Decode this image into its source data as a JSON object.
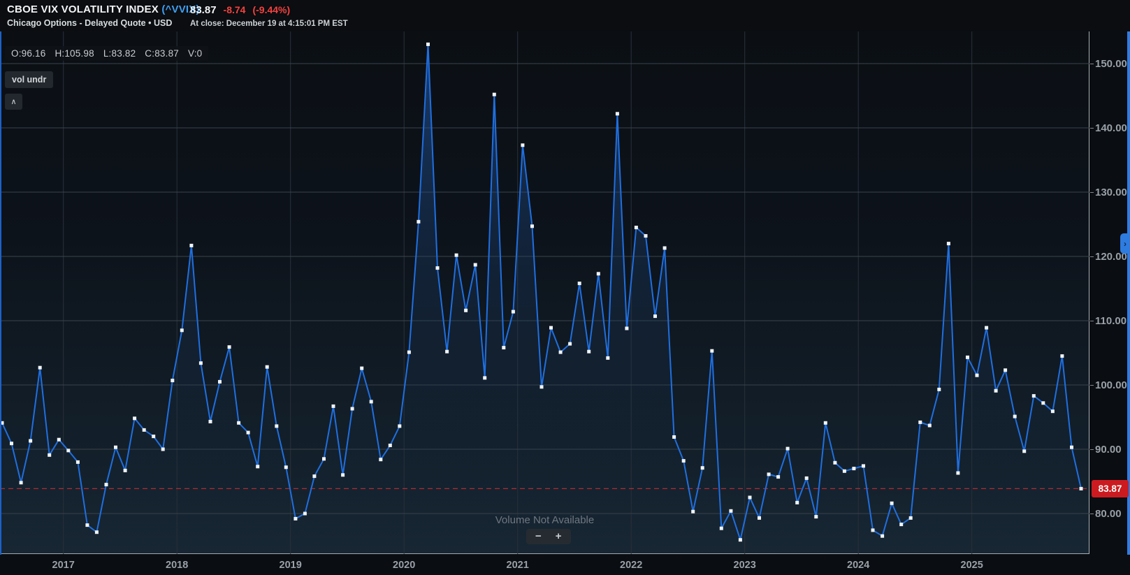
{
  "header": {
    "title": "CBOE VIX VOLATILITY INDEX",
    "symbol": "(^VVIX)",
    "subtitle": "Chicago Options - Delayed Quote • USD",
    "price": "83.87",
    "change": "-8.74",
    "change_pct": "(-9.44%)",
    "at_close": "At close: December 19 at 4:15:01 PM EST"
  },
  "toolbar": {
    "ohlc": {
      "o": "O:96.16",
      "h": "H:105.98",
      "l": "L:83.82",
      "c": "C:83.87",
      "v": "V:0"
    },
    "indicator_label": "vol undr",
    "collapse_label": "∧"
  },
  "overlay": {
    "volume_notice": "Volume Not Available",
    "zoom_out": "−",
    "zoom_in": "+",
    "axis_tab_glyph": "›"
  },
  "price_marker": {
    "label": "83.87",
    "value": 83.87
  },
  "axis": {
    "y_ticks": [
      {
        "label": "150.00",
        "value": 150
      },
      {
        "label": "140.00",
        "value": 140
      },
      {
        "label": "130.00",
        "value": 130
      },
      {
        "label": "120.00",
        "value": 120
      },
      {
        "label": "110.00",
        "value": 110
      },
      {
        "label": "100.00",
        "value": 100
      },
      {
        "label": "90.00",
        "value": 90
      },
      {
        "label": "80.00",
        "value": 80
      }
    ],
    "x_ticks": [
      {
        "label": "2017"
      },
      {
        "label": "2018"
      },
      {
        "label": "2019"
      },
      {
        "label": "2020"
      },
      {
        "label": "2021"
      },
      {
        "label": "2022"
      },
      {
        "label": "2023"
      },
      {
        "label": "2024"
      },
      {
        "label": "2025"
      }
    ]
  },
  "colors": {
    "line": "#1f6fe0",
    "marker": "#f1f4f7",
    "red_dashed": "#b32b30",
    "price_tag_bg": "#cb1b20",
    "symbol_blue": "#3f9ff2",
    "change_red": "#f5413f",
    "grid_h": "#3b434c",
    "grid_v": "#2a313a"
  },
  "chart_data": {
    "type": "line",
    "title": "CBOE VIX Volatility Index (^VVIX) — monthly closes",
    "interval": "monthly",
    "x_start": "2016-06",
    "x_end": "2025-12",
    "xlabel": "",
    "ylabel": "",
    "ylim": [
      74,
      156
    ],
    "y_gridlines": [
      80,
      90,
      100,
      110,
      120,
      130,
      140,
      150
    ],
    "x_year_labels": [
      "2017",
      "2018",
      "2019",
      "2020",
      "2021",
      "2022",
      "2023",
      "2024",
      "2025"
    ],
    "grid": true,
    "legend_position": "none",
    "last_close": 83.87,
    "values": [
      94.1,
      90.9,
      84.8,
      91.3,
      102.7,
      89.1,
      91.5,
      89.8,
      88.0,
      78.2,
      77.1,
      84.5,
      90.3,
      86.7,
      94.8,
      93.0,
      92.0,
      90.0,
      100.7,
      108.5,
      121.7,
      103.4,
      94.3,
      100.5,
      105.9,
      94.1,
      92.6,
      87.3,
      102.8,
      93.6,
      87.2,
      79.2,
      80.0,
      85.8,
      88.5,
      96.7,
      86.0,
      96.3,
      102.6,
      97.4,
      88.4,
      90.6,
      93.6,
      105.1,
      125.4,
      153.0,
      118.2,
      105.2,
      120.2,
      111.6,
      118.7,
      101.1,
      145.2,
      105.8,
      111.4,
      137.3,
      124.7,
      99.7,
      108.9,
      105.1,
      106.4,
      115.8,
      105.2,
      117.3,
      104.2,
      142.2,
      108.8,
      124.5,
      123.2,
      110.7,
      121.3,
      91.9,
      88.2,
      80.3,
      87.1,
      105.3,
      77.7,
      80.4,
      75.9,
      82.5,
      79.3,
      86.1,
      85.7,
      90.1,
      81.7,
      85.5,
      79.5,
      94.1,
      87.9,
      86.6,
      87.0,
      87.4,
      77.4,
      76.5,
      81.6,
      78.3,
      79.3,
      94.2,
      93.7,
      99.3,
      122.0,
      86.3,
      104.3,
      101.5,
      108.9,
      99.1,
      102.3,
      95.1,
      89.7,
      98.3,
      97.2,
      95.9,
      104.5,
      90.3,
      83.87
    ]
  }
}
